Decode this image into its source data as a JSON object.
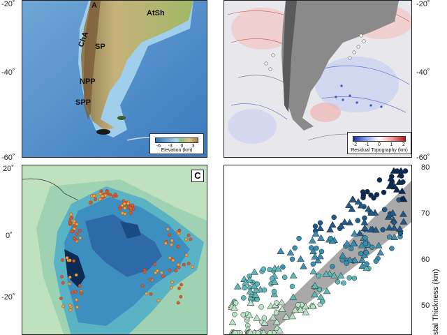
{
  "panel_a": {
    "lat_ticks": [
      "-20˚",
      "-40˚",
      "-60˚"
    ],
    "labels": [
      "A",
      "AtSh",
      "SP",
      "ChA",
      "NPP",
      "SPP"
    ],
    "legend": {
      "title": "Elevation (km)",
      "ticks": [
        "-6",
        "-3",
        "0",
        "3"
      ]
    }
  },
  "panel_b": {
    "lat_ticks": [
      "-20˚",
      "-40˚",
      "-60˚"
    ],
    "legend": {
      "title": "Residual Topography (km)",
      "ticks": [
        "-2",
        "-1",
        "0",
        "1",
        "2"
      ]
    }
  },
  "panel_c": {
    "letter": "C",
    "lat_ticks": [
      "20˚",
      "0˚",
      "-20˚"
    ]
  },
  "panel_d": {
    "y_ticks": [
      "80",
      "70",
      "60",
      "50"
    ],
    "y_label": "stal Thickness (km)"
  },
  "colors": {
    "ocean_deep": "#2f6fb5",
    "ocean_shelf": "#a9d6ee",
    "land_low": "#7fb06a",
    "land_high": "#c7a56a",
    "residual_neg": "#3355cc",
    "residual_pos": "#dd3333",
    "thickness_high": "#0b2a55",
    "thickness_low": "#b8e3c7"
  }
}
